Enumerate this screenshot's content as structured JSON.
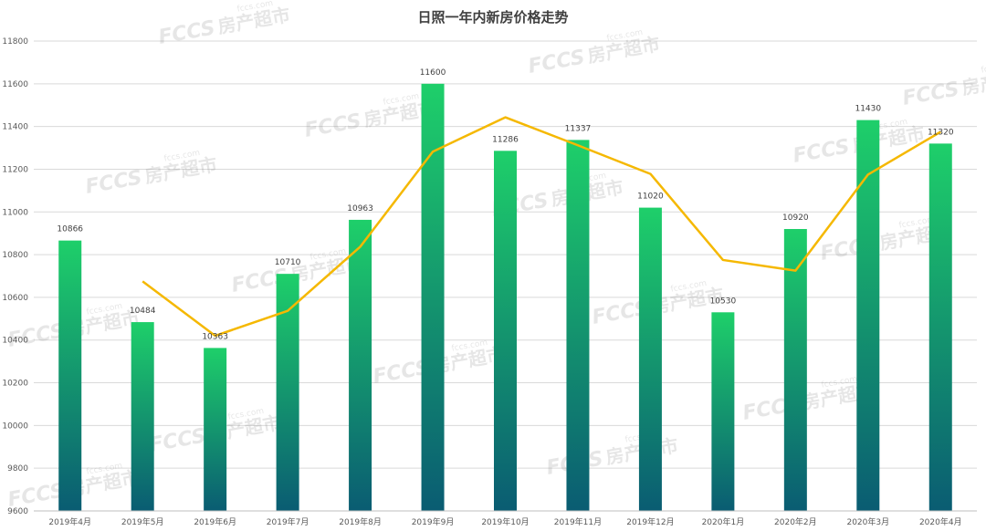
{
  "chart_data": {
    "type": "bar",
    "title": "日照一年内新房价格走势",
    "categories": [
      "2019年4月",
      "2019年5月",
      "2019年6月",
      "2019年7月",
      "2019年8月",
      "2019年9月",
      "2019年10月",
      "2019年11月",
      "2019年12月",
      "2020年1月",
      "2020年2月",
      "2020年3月",
      "2020年4月"
    ],
    "values": [
      10866,
      10484,
      10363,
      10710,
      10963,
      11600,
      11286,
      11337,
      11020,
      10530,
      10920,
      11430,
      11320
    ],
    "data_labels": [
      "10866",
      "10484",
      "10363",
      "10710",
      "10963",
      "11600",
      "11286",
      "11337",
      "11020",
      "10530",
      "10920",
      "11430",
      "11320"
    ],
    "trend_line": {
      "type": "line",
      "values": [
        null,
        10675,
        10420,
        10537,
        10837,
        11282,
        11443,
        11312,
        11178,
        10775,
        10725,
        11175,
        11375
      ]
    },
    "ylim": [
      9600,
      11800
    ],
    "yticks": [
      "9600",
      "9800",
      "10000",
      "10200",
      "10400",
      "10600",
      "10800",
      "11000",
      "11200",
      "11400",
      "11600",
      "11800"
    ],
    "grid": true,
    "legend": "none",
    "colors": {
      "bar_top": "#1ecf6a",
      "bar_bottom": "#0a5c72",
      "line": "#f5b800",
      "grid": "#d9d9d9"
    }
  },
  "watermark": {
    "brand": "fccs",
    "text": "房产超市",
    "url": "fccs.com"
  }
}
